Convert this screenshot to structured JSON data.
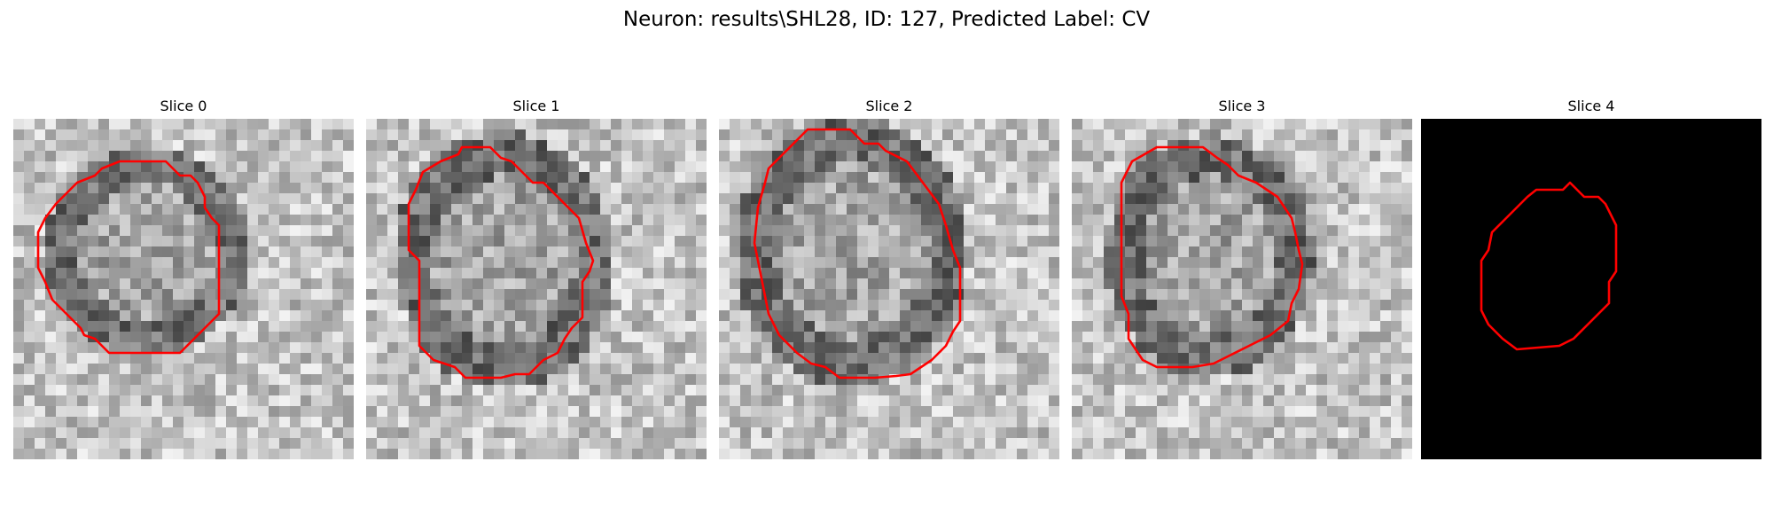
{
  "figure": {
    "title": "Neuron: results\\SHL28, ID: 127, Predicted Label: CV"
  },
  "panels": [
    {
      "title": "Slice 0",
      "blank": false
    },
    {
      "title": "Slice 1",
      "blank": false
    },
    {
      "title": "Slice 2",
      "blank": false
    },
    {
      "title": "Slice 3",
      "blank": false
    },
    {
      "title": "Slice 4",
      "blank": true
    }
  ],
  "colors": {
    "contour": "#ff0000",
    "background": "#ffffff",
    "blank_slice": "#000000"
  },
  "icons": {
    "image": "grayscale-microscopy-patch",
    "overlay": "red-segmentation-contour"
  }
}
